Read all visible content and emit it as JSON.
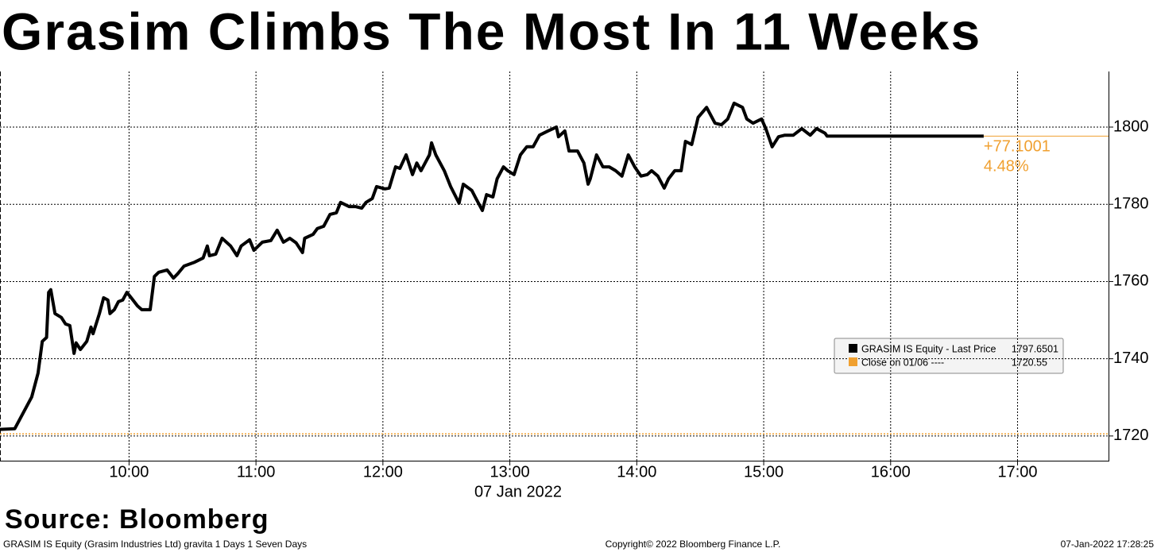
{
  "chart_data": {
    "type": "line",
    "title": "Grasim Climbs The Most In 11 Weeks",
    "xlabel": "07 Jan 2022",
    "source": "Source: Bloomberg",
    "footer_left": "GRASIM IS Equity (Grasim Industries Ltd) gravita 1 Days 1 Seven Days",
    "footer_center": "Copyright© 2022 Bloomberg Finance L.P.",
    "footer_right": "07-Jan-2022 17:28:25",
    "xlim": [
      539,
      1063
    ],
    "xticks": [
      {
        "value": 600,
        "label": "10:00"
      },
      {
        "value": 660,
        "label": "11:00"
      },
      {
        "value": 720,
        "label": "12:00"
      },
      {
        "value": 780,
        "label": "13:00"
      },
      {
        "value": 840,
        "label": "14:00"
      },
      {
        "value": 900,
        "label": "15:00"
      },
      {
        "value": 960,
        "label": "16:00"
      },
      {
        "value": 1020,
        "label": "17:00"
      }
    ],
    "ylim": [
      1713.6,
      1814.4
    ],
    "yticks": [
      1720,
      1740,
      1760,
      1780,
      1800
    ],
    "grid": true,
    "series": [
      {
        "name": "GRASIM IS Equity - Last Price",
        "color": "#000000",
        "last_value": 1797.6501,
        "x": [
          539,
          546,
          554,
          557,
          559,
          561,
          562,
          563,
          565,
          568,
          570,
          572,
          574,
          575,
          577,
          580,
          582,
          583,
          586,
          588,
          590,
          591,
          593,
          595,
          597,
          599,
          601,
          604,
          606,
          610,
          612,
          614,
          618,
          621,
          623,
          626,
          631,
          635,
          637,
          638,
          641,
          644,
          648,
          651,
          653,
          657,
          659,
          663,
          667,
          670,
          673,
          676,
          679,
          682,
          683,
          687,
          689,
          692,
          695,
          698,
          700,
          704,
          707,
          710,
          712,
          715,
          717,
          721,
          723,
          726,
          728,
          731,
          734,
          736,
          738,
          742,
          743,
          745,
          749,
          752,
          756,
          758,
          762,
          764,
          767,
          769,
          772,
          774,
          777,
          779,
          782,
          785,
          788,
          791,
          794,
          798,
          802,
          803,
          806,
          808,
          812,
          815,
          817,
          818,
          821,
          824,
          827,
          830,
          833,
          836,
          839,
          842,
          845,
          847,
          850,
          853,
          855,
          858,
          861,
          863,
          866,
          869,
          873,
          877,
          880,
          883,
          886,
          890,
          892,
          895,
          899,
          901,
          904,
          907,
          910,
          914,
          918,
          922,
          925,
          929,
          930,
          1004
        ],
        "values": [
          1721.7,
          1721.9,
          1730.1,
          1736.3,
          1744.5,
          1745.5,
          1757.2,
          1757.9,
          1751.7,
          1750.7,
          1749.0,
          1748.6,
          1741.4,
          1744.1,
          1742.4,
          1744.5,
          1748.2,
          1746.5,
          1751.7,
          1755.8,
          1755.2,
          1751.7,
          1752.7,
          1754.8,
          1755.2,
          1757.2,
          1755.8,
          1753.7,
          1752.7,
          1752.7,
          1761.3,
          1762.4,
          1763.0,
          1760.9,
          1762.0,
          1764.0,
          1765.0,
          1766.1,
          1769.2,
          1766.7,
          1767.1,
          1771.2,
          1769.2,
          1766.7,
          1769.2,
          1770.8,
          1768.1,
          1770.2,
          1770.6,
          1773.3,
          1770.2,
          1771.2,
          1770.0,
          1767.5,
          1771.2,
          1772.2,
          1773.7,
          1774.3,
          1777.4,
          1777.8,
          1780.5,
          1779.4,
          1779.4,
          1779.0,
          1780.5,
          1781.5,
          1784.6,
          1784.0,
          1784.2,
          1789.7,
          1789.3,
          1792.8,
          1787.7,
          1790.7,
          1788.7,
          1792.8,
          1795.9,
          1792.8,
          1788.7,
          1784.6,
          1780.3,
          1785.2,
          1783.6,
          1781.5,
          1778.4,
          1782.5,
          1781.9,
          1786.6,
          1789.7,
          1788.7,
          1787.7,
          1792.8,
          1794.9,
          1794.9,
          1797.9,
          1799.0,
          1800.0,
          1797.5,
          1799.0,
          1793.8,
          1793.8,
          1790.7,
          1785.2,
          1786.6,
          1792.8,
          1789.7,
          1789.7,
          1788.7,
          1787.3,
          1792.8,
          1789.7,
          1787.3,
          1787.7,
          1788.7,
          1787.3,
          1784.2,
          1786.6,
          1788.7,
          1788.7,
          1796.3,
          1795.5,
          1802.5,
          1805.1,
          1801.0,
          1800.6,
          1802.1,
          1806.2,
          1805.1,
          1802.1,
          1801.0,
          1802.1,
          1799.6,
          1794.9,
          1797.5,
          1797.9,
          1797.9,
          1799.6,
          1797.9,
          1799.6,
          1798.4,
          1797.65,
          1797.65
        ]
      }
    ],
    "close": {
      "name": "Close on 01/06 ----",
      "value": 1720.55,
      "color": "#f0a030"
    },
    "change": {
      "value": 77.1001,
      "label": "+77.1001"
    },
    "change_pct": {
      "value": 4.48,
      "label": "4.48%"
    }
  }
}
